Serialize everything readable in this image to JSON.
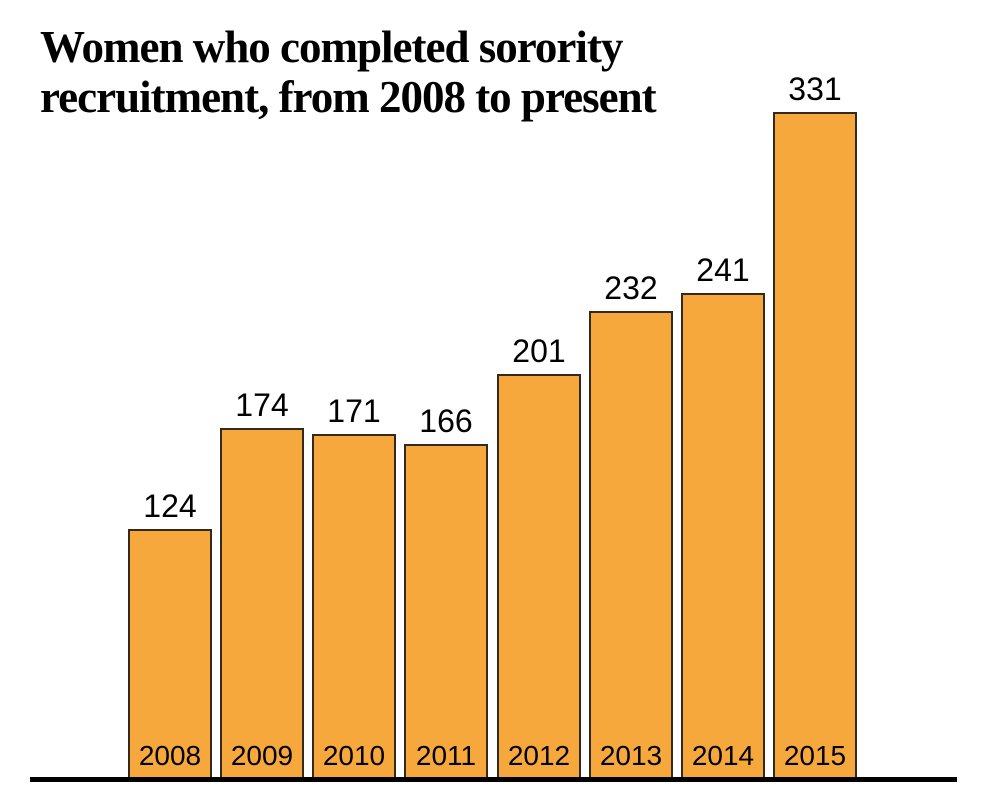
{
  "title": {
    "text": "Women who completed sorority recruitment, from 2008 to present"
  },
  "chart_data": {
    "type": "bar",
    "title": "Women who completed sorority recruitment, from 2008 to present",
    "categories": [
      "2008",
      "2009",
      "2010",
      "2011",
      "2012",
      "2013",
      "2014",
      "2015"
    ],
    "values": [
      124,
      174,
      171,
      166,
      201,
      232,
      241,
      331
    ],
    "xlabel": "",
    "ylabel": "",
    "ylim": [
      0,
      335
    ],
    "grid": false,
    "legend": "none",
    "data_labels_shown": true,
    "bar_color": "#F7A83C",
    "bar_border_color": "#33291C",
    "baseline_color": "#000000",
    "label_color": "#000000"
  }
}
